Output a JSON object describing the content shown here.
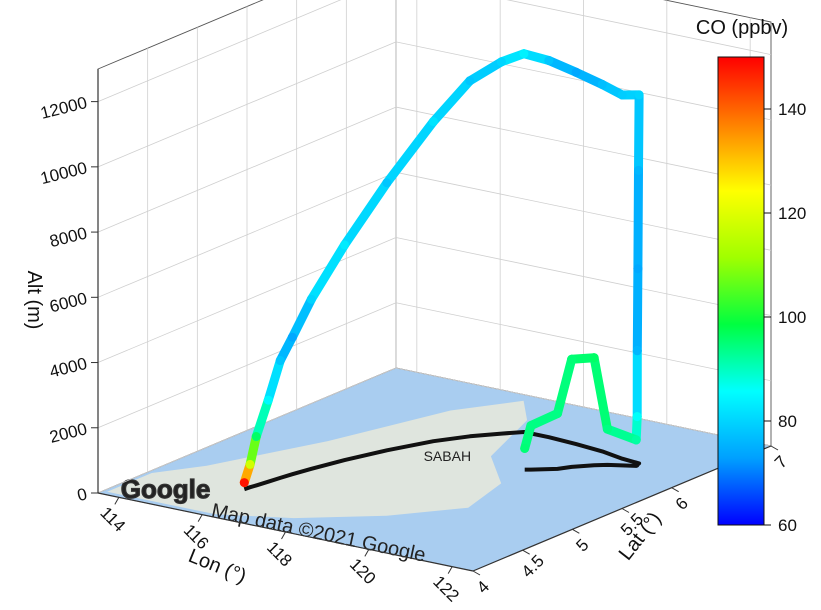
{
  "chart_data": {
    "type": "line",
    "dimensions": "3d",
    "xlabel": "Lon (°)",
    "ylabel": "Lat (°)",
    "zlabel": "Alt (m)",
    "x_ticks": [
      "114",
      "116",
      "118",
      "120",
      "122"
    ],
    "y_ticks": [
      "4",
      "4.5",
      "5",
      "5.5",
      "6",
      "6.5",
      "7"
    ],
    "z_ticks": [
      "0",
      "2000",
      "4000",
      "6000",
      "8000",
      "10000",
      "12000"
    ],
    "xlim": [
      113.5,
      122.5
    ],
    "ylim": [
      4,
      7
    ],
    "zlim": [
      0,
      13000
    ],
    "grid": true,
    "colorbar": {
      "title": "CO (ppbv)",
      "range": [
        60,
        150
      ],
      "ticks": [
        "60",
        "80",
        "100",
        "120",
        "140"
      ],
      "colormap": [
        "#0000ff",
        "#00a0ff",
        "#00ffff",
        "#00ff40",
        "#a0ff00",
        "#ffff00",
        "#ff8000",
        "#ff0000"
      ]
    },
    "basemap_text": {
      "logo": "Google",
      "attribution": "Map data ©2021 Google",
      "region": "SABAH"
    },
    "flight_track": [
      {
        "lon": 115.7,
        "lat": 4.55,
        "alt": 200,
        "co": 148
      },
      {
        "lon": 115.72,
        "lat": 4.6,
        "alt": 700,
        "co": 118
      },
      {
        "lon": 115.75,
        "lat": 4.65,
        "alt": 1500,
        "co": 96
      },
      {
        "lon": 115.8,
        "lat": 4.75,
        "alt": 2500,
        "co": 85
      },
      {
        "lon": 115.85,
        "lat": 4.85,
        "alt": 3600,
        "co": 78
      },
      {
        "lon": 115.9,
        "lat": 4.95,
        "alt": 4200,
        "co": 74
      },
      {
        "lon": 116.0,
        "lat": 5.1,
        "alt": 5200,
        "co": 80
      },
      {
        "lon": 116.2,
        "lat": 5.35,
        "alt": 6600,
        "co": 83
      },
      {
        "lon": 116.5,
        "lat": 5.65,
        "alt": 8200,
        "co": 78
      },
      {
        "lon": 116.9,
        "lat": 5.95,
        "alt": 9800,
        "co": 82
      },
      {
        "lon": 117.3,
        "lat": 6.15,
        "alt": 10900,
        "co": 78
      },
      {
        "lon": 117.7,
        "lat": 6.3,
        "alt": 11400,
        "co": 80
      },
      {
        "lon": 118.0,
        "lat": 6.4,
        "alt": 11600,
        "co": 84
      },
      {
        "lon": 118.6,
        "lat": 6.4,
        "alt": 11550,
        "co": 78
      },
      {
        "lon": 119.3,
        "lat": 6.38,
        "alt": 11400,
        "co": 74
      },
      {
        "lon": 120.0,
        "lat": 6.35,
        "alt": 11250,
        "co": 77
      },
      {
        "lon": 120.6,
        "lat": 6.3,
        "alt": 11150,
        "co": 79
      },
      {
        "lon": 121.05,
        "lat": 6.28,
        "alt": 11300,
        "co": 80
      },
      {
        "lon": 121.06,
        "lat": 6.27,
        "alt": 9000,
        "co": 76
      },
      {
        "lon": 121.07,
        "lat": 6.26,
        "alt": 6000,
        "co": 74
      },
      {
        "lon": 121.08,
        "lat": 6.25,
        "alt": 3500,
        "co": 76
      },
      {
        "lon": 121.1,
        "lat": 6.24,
        "alt": 1500,
        "co": 86
      },
      {
        "lon": 121.1,
        "lat": 6.23,
        "alt": 800,
        "co": 92
      },
      {
        "lon": 120.6,
        "lat": 6.15,
        "alt": 1100,
        "co": 94
      },
      {
        "lon": 120.4,
        "lat": 6.1,
        "alt": 3300,
        "co": 96
      },
      {
        "lon": 120.1,
        "lat": 6.0,
        "alt": 3300,
        "co": 95
      },
      {
        "lon": 119.95,
        "lat": 5.92,
        "alt": 1700,
        "co": 94
      },
      {
        "lon": 119.55,
        "lat": 5.82,
        "alt": 1350,
        "co": 94
      },
      {
        "lon": 119.45,
        "lat": 5.8,
        "alt": 650,
        "co": 95
      }
    ]
  }
}
